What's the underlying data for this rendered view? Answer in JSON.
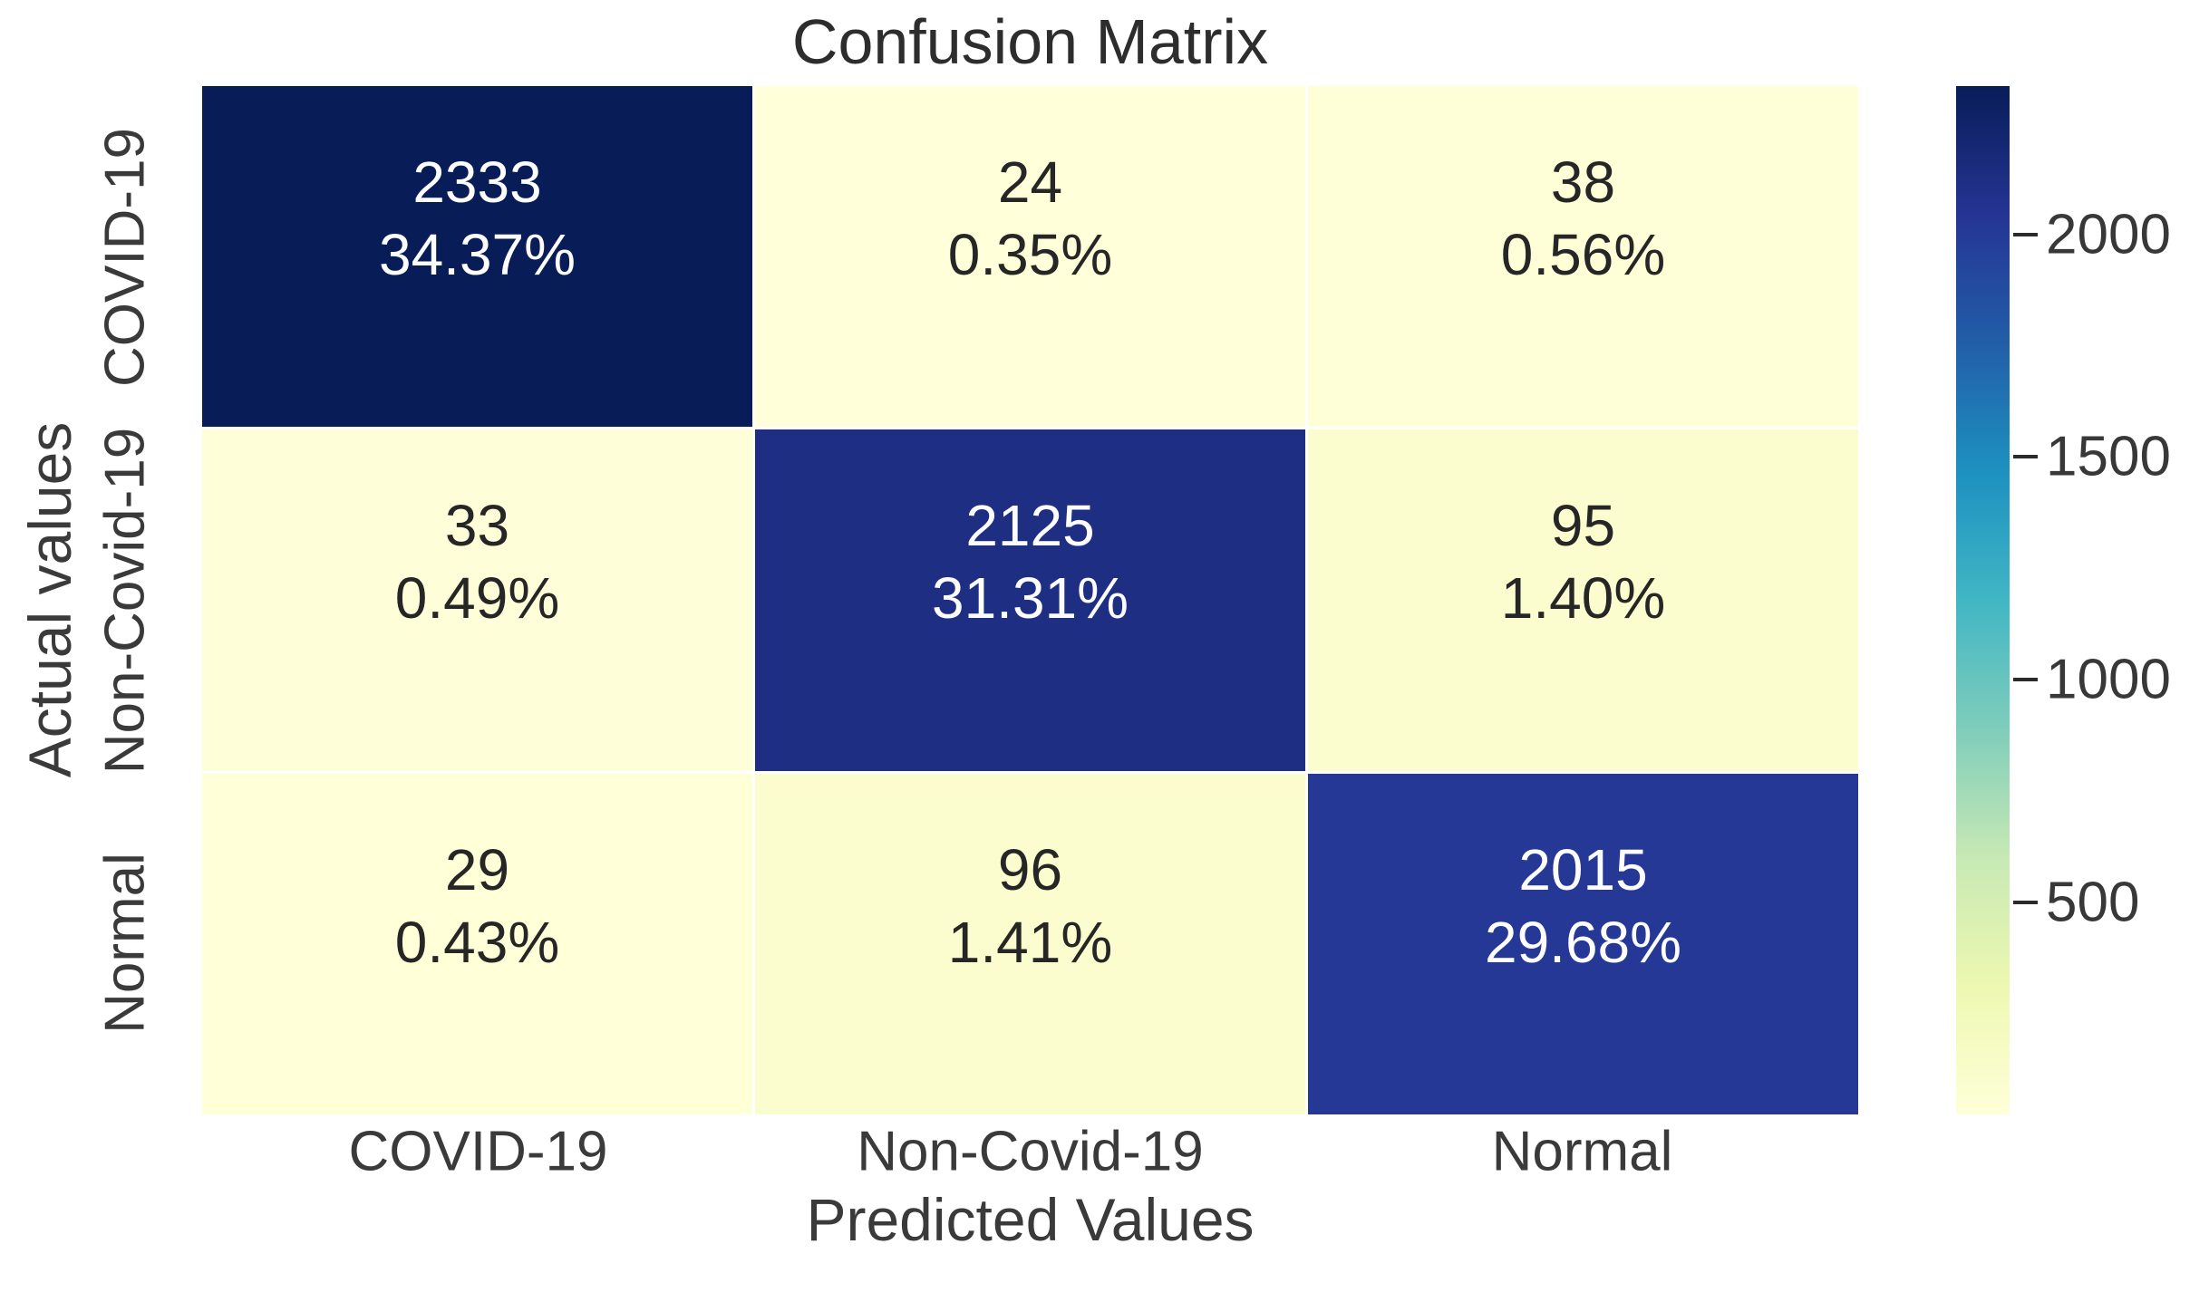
{
  "title": "Confusion Matrix",
  "y_axis": {
    "label": "Actual values",
    "tick_labels": [
      "COVID-19",
      "Non-Covid-19",
      "Normal"
    ]
  },
  "x_axis": {
    "label": "Predicted Values",
    "tick_labels": [
      "COVID-19",
      "Non-Covid-19",
      "Normal"
    ]
  },
  "colorbar": {
    "tick_values": [
      2000,
      1500,
      1000,
      500
    ],
    "colormap_name": "YlGnBu",
    "colormap": [
      "#ffffd9",
      "#edf8b1",
      "#c7e9b4",
      "#7fcdbb",
      "#41b6c4",
      "#1d91c0",
      "#225ea8",
      "#253494",
      "#081d58"
    ]
  },
  "annotation_colors": {
    "on_light": "#262626",
    "on_dark": "#fdfdfd"
  },
  "chart_data": {
    "type": "heatmap",
    "title": "Confusion Matrix",
    "xlabel": "Predicted Values",
    "ylabel": "Actual values",
    "categories": [
      "COVID-19",
      "Non-Covid-19",
      "Normal"
    ],
    "matrix": [
      [
        2333,
        24,
        38
      ],
      [
        33,
        2125,
        95
      ],
      [
        29,
        96,
        2015
      ]
    ],
    "percent_labels": [
      [
        "34.37%",
        "0.35%",
        "0.56%"
      ],
      [
        "0.49%",
        "31.31%",
        "1.40%"
      ],
      [
        "0.43%",
        "1.41%",
        "29.68%"
      ]
    ],
    "colorbar_ticks": [
      2000,
      1500,
      1000,
      500
    ],
    "colormap": "YlGnBu",
    "legend_position": "right-colorbar",
    "grid": false,
    "cell_gap_color": "#ffffff"
  }
}
